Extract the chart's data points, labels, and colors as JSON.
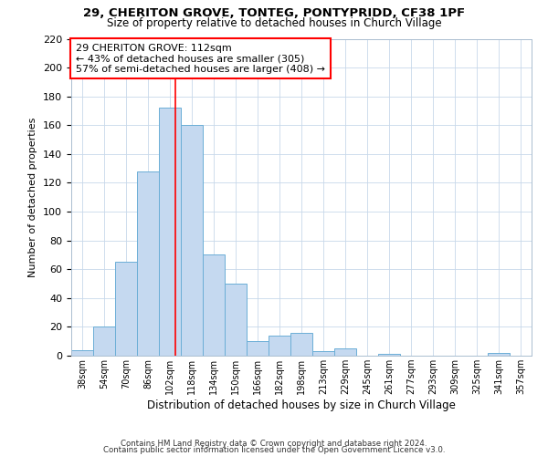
{
  "title": "29, CHERITON GROVE, TONTEG, PONTYPRIDD, CF38 1PF",
  "subtitle": "Size of property relative to detached houses in Church Village",
  "xlabel": "Distribution of detached houses by size in Church Village",
  "ylabel": "Number of detached properties",
  "bar_color": "#c5d9f0",
  "bar_edge_color": "#6baed6",
  "bin_labels": [
    "38sqm",
    "54sqm",
    "70sqm",
    "86sqm",
    "102sqm",
    "118sqm",
    "134sqm",
    "150sqm",
    "166sqm",
    "182sqm",
    "198sqm",
    "213sqm",
    "229sqm",
    "245sqm",
    "261sqm",
    "277sqm",
    "293sqm",
    "309sqm",
    "325sqm",
    "341sqm",
    "357sqm"
  ],
  "bar_heights": [
    4,
    20,
    65,
    128,
    172,
    160,
    70,
    50,
    10,
    14,
    16,
    3,
    5,
    0,
    1,
    0,
    0,
    0,
    0,
    2,
    0
  ],
  "ylim": [
    0,
    220
  ],
  "yticks": [
    0,
    20,
    40,
    60,
    80,
    100,
    120,
    140,
    160,
    180,
    200,
    220
  ],
  "annotation_title": "29 CHERITON GROVE: 112sqm",
  "annotation_line1": "← 43% of detached houses are smaller (305)",
  "annotation_line2": "57% of semi-detached houses are larger (408) →",
  "red_line_bin_index": 4.75,
  "footer1": "Contains HM Land Registry data © Crown copyright and database right 2024.",
  "footer2": "Contains public sector information licensed under the Open Government Licence v3.0."
}
